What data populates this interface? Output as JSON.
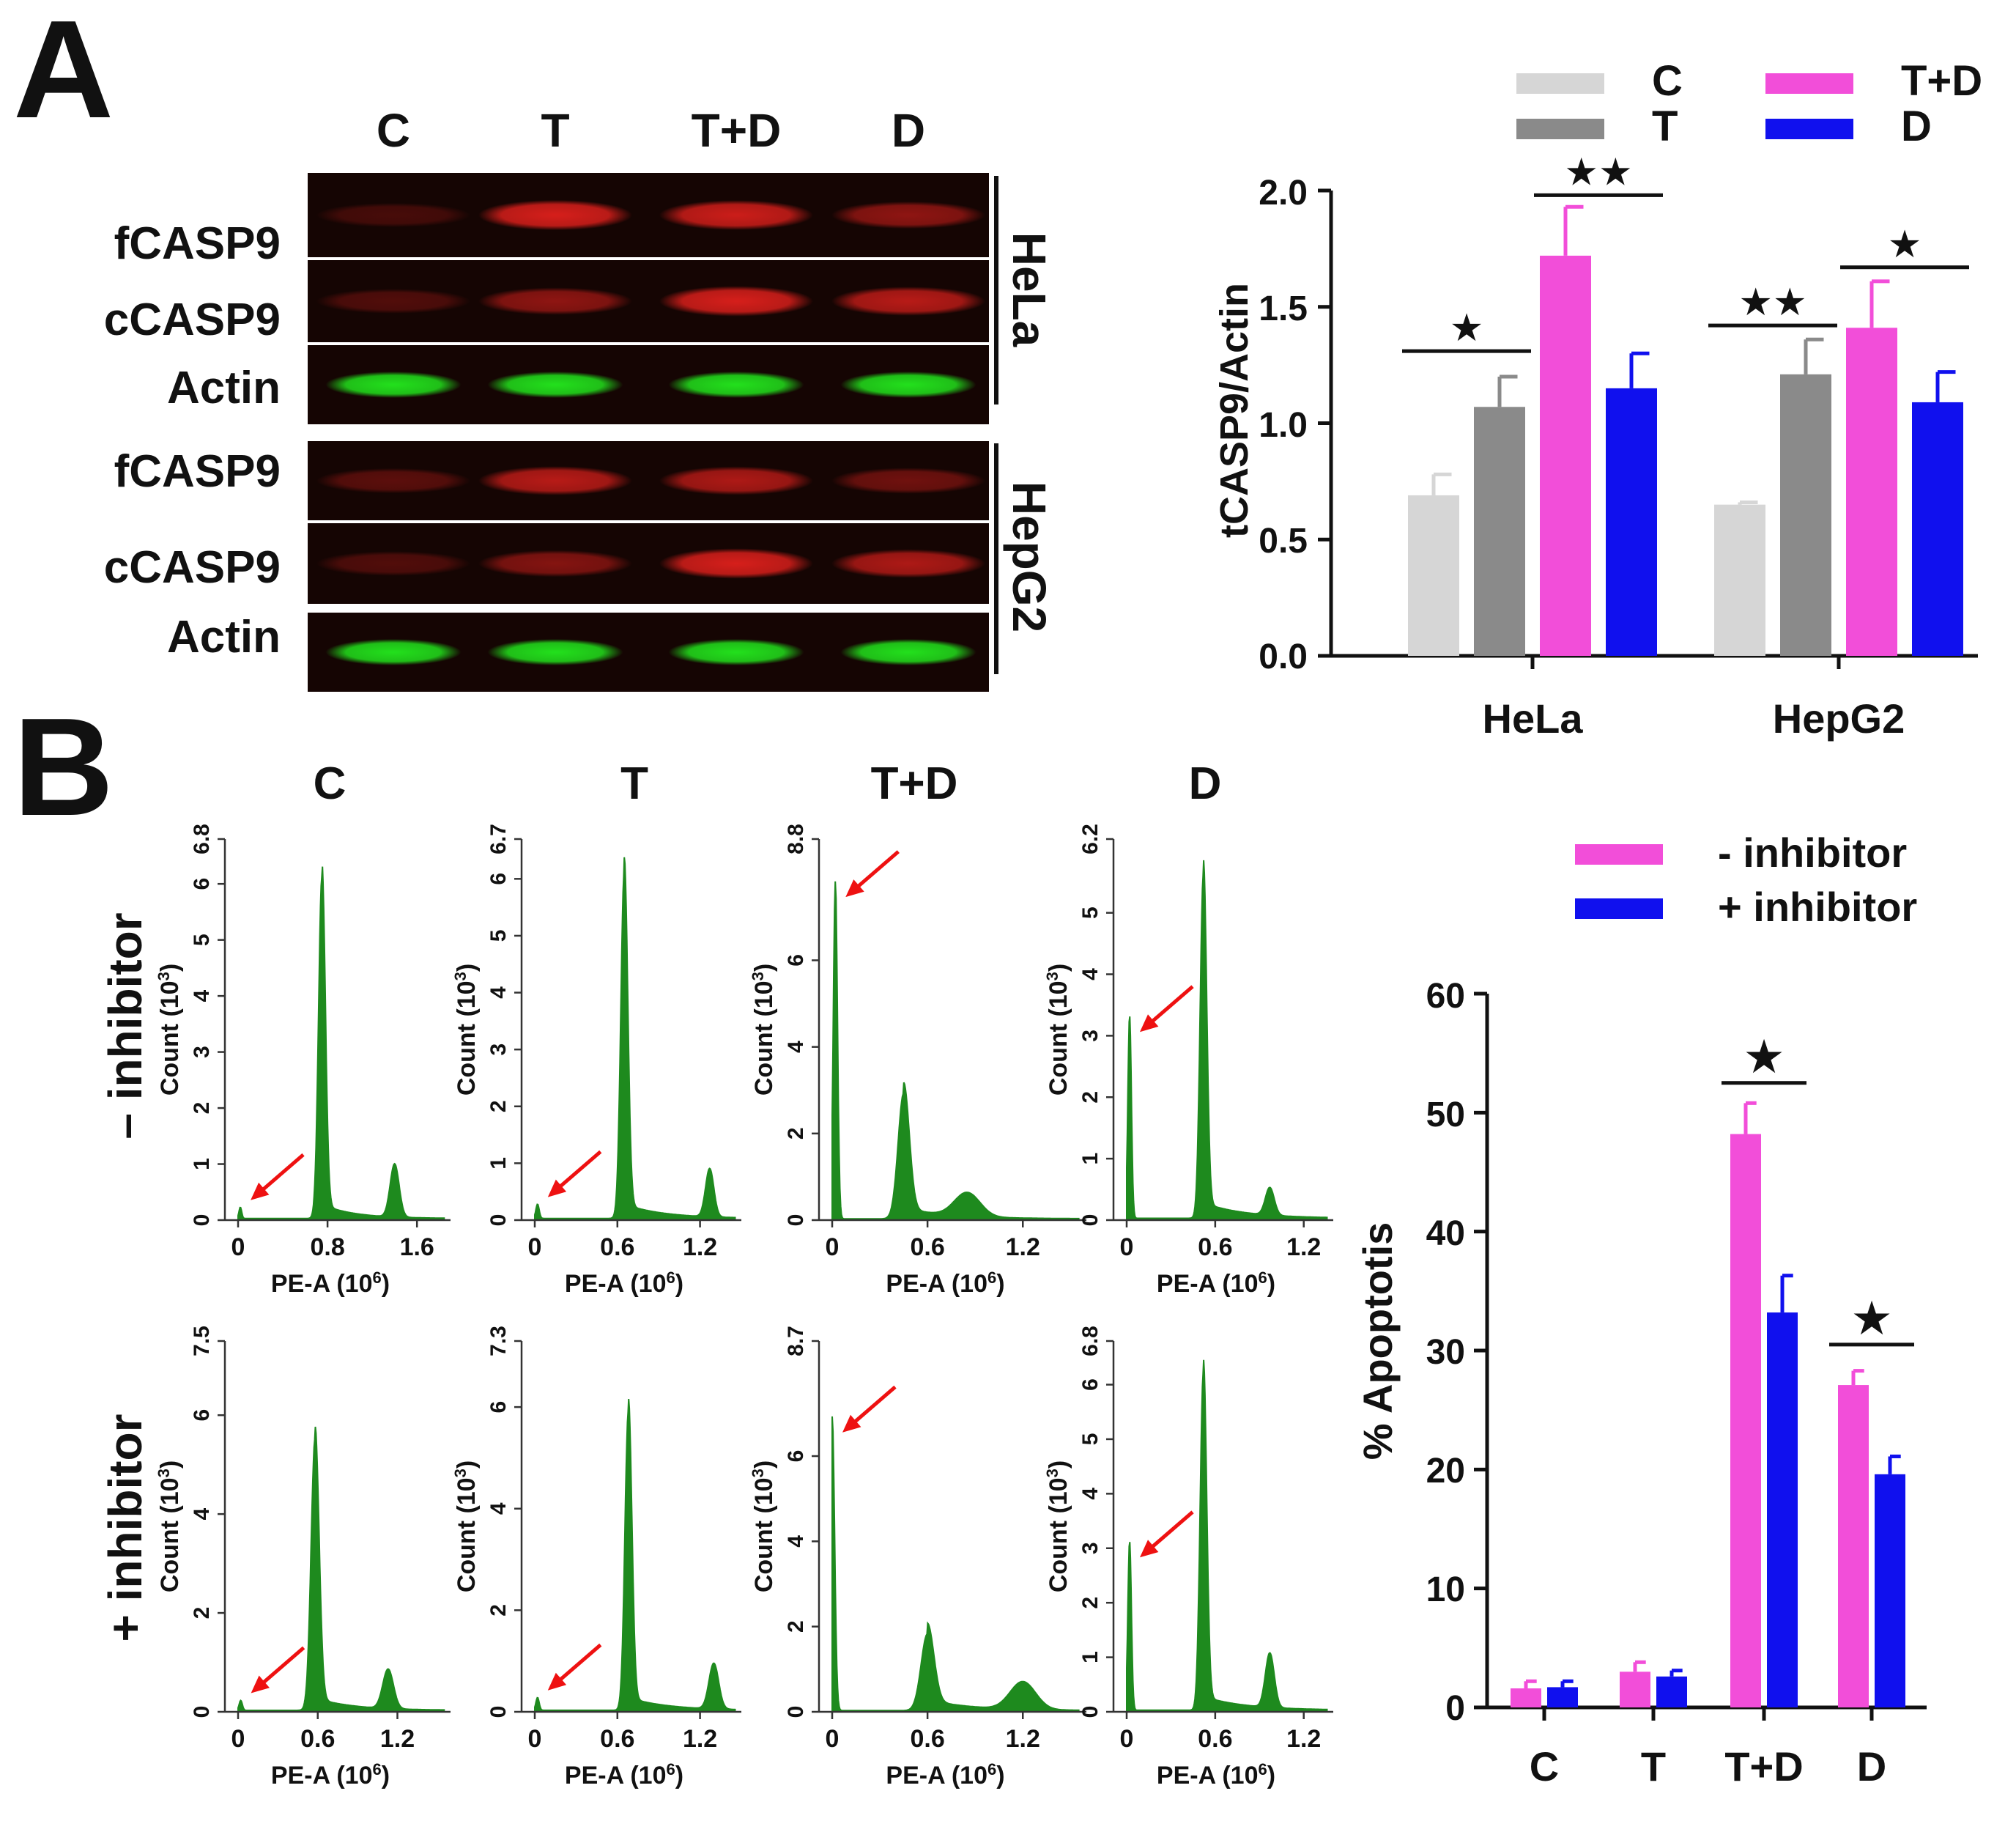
{
  "panels": {
    "a": "A",
    "b": "B"
  },
  "blot": {
    "lanes": [
      "C",
      "T",
      "T+D",
      "D"
    ],
    "rows": [
      "fCASP9",
      "cCASP9",
      "Actin",
      "fCASP9",
      "cCASP9",
      "Actin"
    ],
    "groups": [
      "HeLa",
      "HepG2"
    ],
    "intensity": {
      "HeLa": {
        "fCASP9": [
          0.25,
          0.95,
          0.9,
          0.6
        ],
        "cCASP9": [
          0.3,
          0.6,
          0.95,
          0.8
        ],
        "Actin": [
          1,
          1,
          1,
          1
        ]
      },
      "HepG2": {
        "fCASP9": [
          0.35,
          0.8,
          0.75,
          0.45
        ],
        "cCASP9": [
          0.3,
          0.55,
          0.95,
          0.75
        ],
        "Actin": [
          1,
          1,
          1,
          1
        ]
      }
    },
    "colors": {
      "red": "#e0201c",
      "green": "#22e01c",
      "background": "#150503"
    }
  },
  "chart_data": [
    {
      "type": "bar",
      "ylabel": "tCASP9/Actin",
      "xlabel": "",
      "categories": [
        "HeLa",
        "HepG2"
      ],
      "ylim": [
        0,
        2.0
      ],
      "yticks": [
        "0.0",
        "0.5",
        "1.0",
        "1.5",
        "2.0"
      ],
      "series": [
        {
          "name": "C",
          "color": "#d6d6d6",
          "values": [
            0.69,
            0.65
          ],
          "errors": [
            0.09,
            0.01
          ]
        },
        {
          "name": "T",
          "color": "#8a8a8a",
          "values": [
            1.07,
            1.21
          ],
          "errors": [
            0.13,
            0.15
          ]
        },
        {
          "name": "T+D",
          "color": "#f24ed9",
          "values": [
            1.72,
            1.41
          ],
          "errors": [
            0.21,
            0.2
          ]
        },
        {
          "name": "D",
          "color": "#1010ee",
          "values": [
            1.15,
            1.09
          ],
          "errors": [
            0.15,
            0.13
          ]
        }
      ],
      "legend": [
        "C",
        "T",
        "T+D",
        "D"
      ],
      "significance": [
        {
          "group": 0,
          "from": 0,
          "to": 1,
          "y": 1.31,
          "label": "★"
        },
        {
          "group": 0,
          "from": 2,
          "to": 3,
          "y": 1.98,
          "label": "★★"
        },
        {
          "group": 1,
          "from": 0,
          "to": 1,
          "y": 1.42,
          "label": "★★"
        },
        {
          "group": 1,
          "from": 2,
          "to": 3,
          "y": 1.67,
          "label": "★"
        }
      ]
    },
    {
      "type": "bar",
      "ylabel": "% Apoptotis",
      "xlabel": "",
      "categories": [
        "C",
        "T",
        "T+D",
        "D"
      ],
      "ylim": [
        0,
        60
      ],
      "yticks": [
        "0",
        "10",
        "20",
        "30",
        "40",
        "50",
        "60"
      ],
      "series": [
        {
          "name": "- inhibitor",
          "color": "#f24ed9",
          "values": [
            1.6,
            3.0,
            48.2,
            27.1
          ],
          "errors": [
            0.6,
            0.8,
            2.6,
            1.2
          ]
        },
        {
          "name": "+ inhibitor",
          "color": "#1010ee",
          "values": [
            1.7,
            2.6,
            33.2,
            19.6
          ],
          "errors": [
            0.5,
            0.5,
            3.1,
            1.5
          ]
        }
      ],
      "legend": [
        "- inhibitor",
        "+ inhibitor"
      ],
      "significance": [
        {
          "group": 2,
          "y": 52.5,
          "label": "★"
        },
        {
          "group": 3,
          "y": 30.5,
          "label": "★"
        }
      ]
    }
  ],
  "flow": {
    "columns": [
      "C",
      "T",
      "T+D",
      "D"
    ],
    "rows": [
      "– inhibitor",
      "+ inhibitor"
    ],
    "ylabel_pre": "Count (10",
    "ylabel_sup": "3",
    "ylabel_post": ")",
    "xlabel_pre": "PE-A (10",
    "xlabel_sup": "6",
    "xlabel_post": ")",
    "fill": "#1e8a1e",
    "arrow": "#ee1111",
    "histograms": [
      {
        "ymax": 6.8,
        "yticks": [
          "0",
          "1",
          "2",
          "3",
          "4",
          "5",
          "6",
          "6.8"
        ],
        "xmax": 1.9,
        "xticks": [
          0,
          0.8,
          1.6
        ],
        "xtick_labels": [
          "0",
          "0.8",
          "1.6"
        ],
        "peaks": [
          [
            0.02,
            0.2,
            0.012
          ],
          [
            0.75,
            6.1,
            0.03
          ],
          [
            1.4,
            0.95,
            0.04
          ]
        ],
        "arrow_peak": 0
      },
      {
        "ymax": 6.7,
        "yticks": [
          "0",
          "1",
          "2",
          "3",
          "4",
          "5",
          "6",
          "6.7"
        ],
        "xmax": 1.5,
        "xticks": [
          0,
          0.6,
          1.2
        ],
        "xtick_labels": [
          "0",
          "0.6",
          "1.2"
        ],
        "peaks": [
          [
            0.02,
            0.25,
            0.012
          ],
          [
            0.65,
            6.1,
            0.025
          ],
          [
            1.27,
            0.85,
            0.03
          ]
        ],
        "arrow_peak": 0
      },
      {
        "ymax": 8.8,
        "yticks": [
          "0",
          "2",
          "4",
          "6",
          "8.8"
        ],
        "xmax": 1.6,
        "xticks": [
          0,
          0.6,
          1.2
        ],
        "xtick_labels": [
          "0",
          "0.6",
          "1.2"
        ],
        "peaks": [
          [
            0.02,
            7.8,
            0.013
          ],
          [
            0.45,
            2.9,
            0.035
          ],
          [
            0.85,
            0.55,
            0.08
          ]
        ],
        "arrow_peak": 0
      },
      {
        "ymax": 6.2,
        "yticks": [
          "0",
          "1",
          "2",
          "3",
          "4",
          "5",
          "6.2"
        ],
        "xmax": 1.4,
        "xticks": [
          0,
          0.6,
          1.2
        ],
        "xtick_labels": [
          "0",
          "0.6",
          "1.2"
        ],
        "peaks": [
          [
            0.02,
            3.3,
            0.012
          ],
          [
            0.52,
            5.6,
            0.022
          ],
          [
            0.97,
            0.45,
            0.03
          ]
        ],
        "arrow_peak": 0
      },
      {
        "ymax": 7.5,
        "yticks": [
          "0",
          "2",
          "4",
          "6",
          "7.5"
        ],
        "xmax": 1.6,
        "xticks": [
          0,
          0.6,
          1.2
        ],
        "xtick_labels": [
          "0",
          "0.6",
          "1.2"
        ],
        "peaks": [
          [
            0.02,
            0.2,
            0.012
          ],
          [
            0.58,
            5.5,
            0.03
          ],
          [
            1.13,
            0.8,
            0.04
          ]
        ],
        "arrow_peak": 0
      },
      {
        "ymax": 7.3,
        "yticks": [
          "0",
          "2",
          "4",
          "6",
          "7.3"
        ],
        "xmax": 1.5,
        "xticks": [
          0,
          0.6,
          1.2
        ],
        "xtick_labels": [
          "0",
          "0.6",
          "1.2"
        ],
        "peaks": [
          [
            0.02,
            0.25,
            0.012
          ],
          [
            0.68,
            5.9,
            0.025
          ],
          [
            1.3,
            0.9,
            0.035
          ]
        ],
        "arrow_peak": 0
      },
      {
        "ymax": 8.7,
        "yticks": [
          "0",
          "2",
          "4",
          "6",
          "8.7"
        ],
        "xmax": 1.6,
        "xticks": [
          0,
          0.6,
          1.2
        ],
        "xtick_labels": [
          "0",
          "0.6",
          "1.2"
        ],
        "peaks": [
          [
            0.0,
            6.9,
            0.015
          ],
          [
            0.6,
            1.8,
            0.04
          ],
          [
            1.2,
            0.65,
            0.08
          ]
        ],
        "arrow_peak": 0
      },
      {
        "ymax": 6.8,
        "yticks": [
          "0",
          "1",
          "2",
          "3",
          "4",
          "5",
          "6",
          "6.8"
        ],
        "xmax": 1.4,
        "xticks": [
          0,
          0.6,
          1.2
        ],
        "xtick_labels": [
          "0",
          "0.6",
          "1.2"
        ],
        "peaks": [
          [
            0.02,
            3.1,
            0.012
          ],
          [
            0.52,
            6.2,
            0.022
          ],
          [
            0.97,
            1.0,
            0.03
          ]
        ],
        "arrow_peak": 0
      }
    ]
  }
}
